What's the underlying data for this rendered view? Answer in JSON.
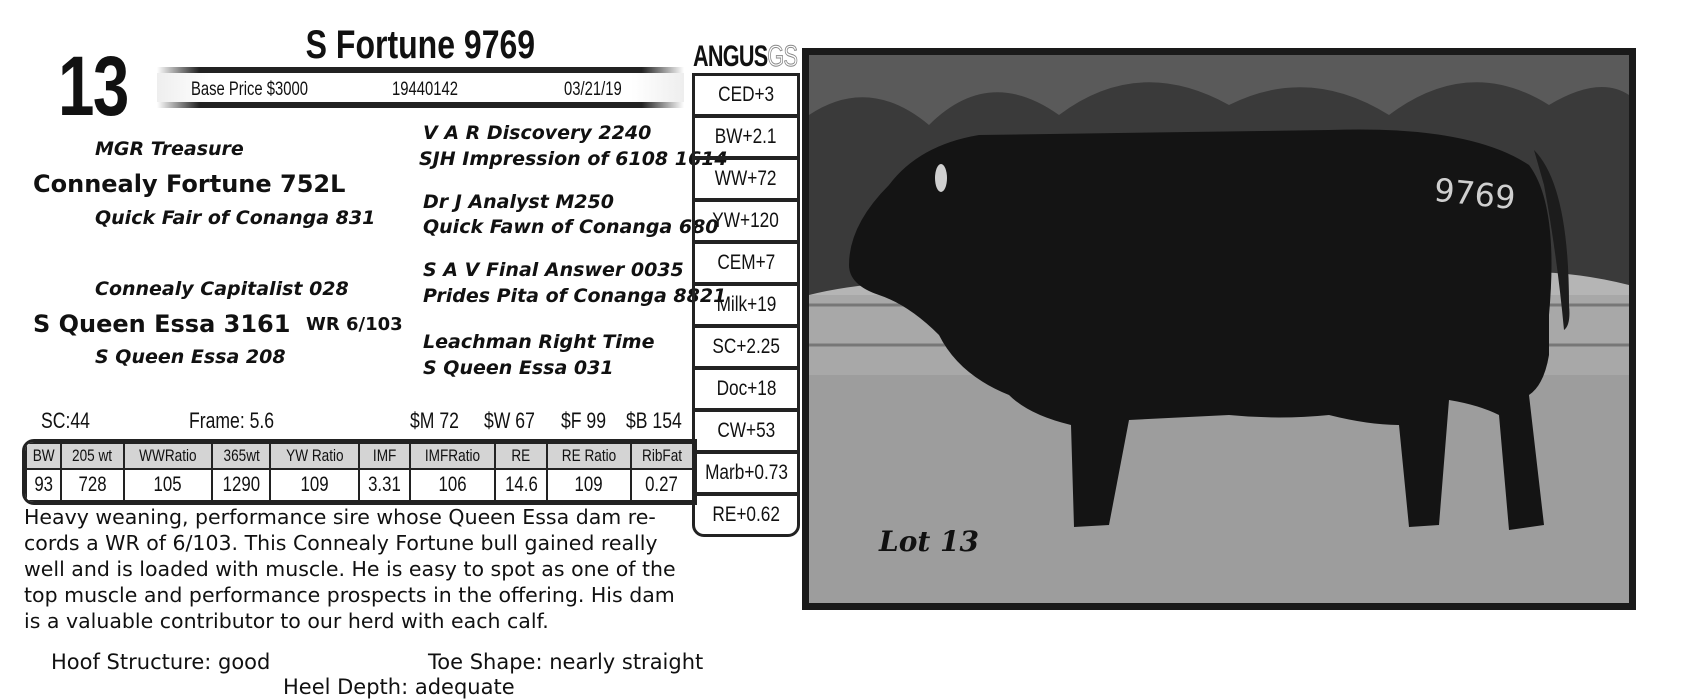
{
  "lot": {
    "number": "13",
    "name": "S Fortune 9769"
  },
  "info_bar": {
    "base_price": "Base Price $3000",
    "registration": "19440142",
    "birth_date": "03/21/19"
  },
  "pedigree": {
    "sire": "Connealy Fortune 752L",
    "sire_sire": "MGR Treasure",
    "sire_dam": "Quick Fair of Conanga 831",
    "dam": "S Queen Essa 3161",
    "dam_note": "WR 6/103",
    "dam_sire": "Connealy Capitalist 028",
    "dam_dam": "S Queen Essa 208",
    "ss_pair": [
      "V A R Discovery 2240",
      "SJH Impression of 6108 1614"
    ],
    "sd_pair": [
      "Dr J Analyst M250",
      "Quick Fawn of Conanga 680"
    ],
    "ds_pair": [
      "S A V Final Answer 0035",
      "Prides Pita of Conanga 8821"
    ],
    "dd_pair": [
      "Leachman Right Time",
      "S Queen Essa 031"
    ]
  },
  "stats": {
    "sc": "SC:44",
    "frame": "Frame:  5.6",
    "m": "$M 72",
    "w": "$W 67",
    "f": "$F 99",
    "b": "$B 154"
  },
  "performance": {
    "headers": [
      "BW",
      "205 wt",
      "WWRatio",
      "365wt",
      "YW Ratio",
      "IMF",
      "IMFRatio",
      "RE",
      "RE Ratio",
      "RibFat"
    ],
    "values": [
      "93",
      "728",
      "105",
      "1290",
      "109",
      "3.31",
      "106",
      "14.6",
      "109",
      "0.27"
    ]
  },
  "description": "Heavy weaning, performance sire whose Queen Essa dam re-cords a WR of 6/103.  This Connealy Fortune bull gained really well and is loaded with muscle.  He is easy to spot as one of the top muscle and performance prospects in the offering.  His dam is a valuable contributor to our herd with each calf.",
  "traits": {
    "hoof": "Hoof Structure: good",
    "toe": "Toe Shape: nearly straight",
    "heel": "Heel Depth: adequate"
  },
  "epd_logo": {
    "main": "ANGUS",
    "suffix": "GS"
  },
  "epds": [
    "CED+3",
    "BW+2.1",
    "WW+72",
    "YW+120",
    "CEM+7",
    "Milk+19",
    "SC+2.25",
    "Doc+18",
    "CW+53",
    "Marb+0.73",
    "RE+0.62"
  ],
  "photo": {
    "lot_label": "Lot 13",
    "tag_number": "9769"
  }
}
